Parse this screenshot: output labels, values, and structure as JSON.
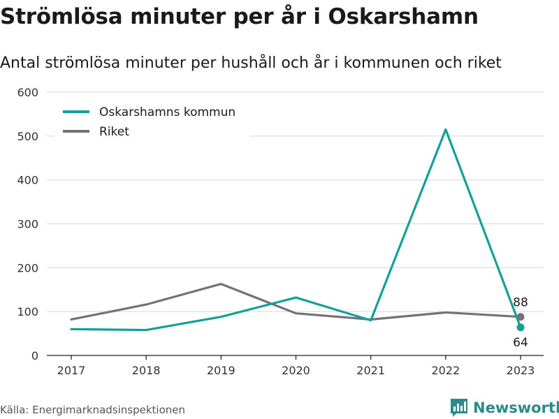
{
  "title": "Strömlösa minuter per år i Oskarshamn",
  "subtitle": "Antal strömlösa minuter per hushåll och år i kommunen och riket",
  "source": "Källa: Energimarknadsinspektionen",
  "brand": {
    "name": "Newsworthy",
    "icon": "bar-chart-logo-icon",
    "color": "#2b8a8a"
  },
  "chart_data": {
    "type": "line",
    "x": [
      "2017",
      "2018",
      "2019",
      "2020",
      "2021",
      "2022",
      "2023"
    ],
    "ylim": [
      0,
      600
    ],
    "yticks": [
      "0",
      "100",
      "200",
      "300",
      "400",
      "500",
      "600"
    ],
    "grid": true,
    "legend_position": "top-left",
    "series": [
      {
        "name": "Oskarshamns kommun",
        "color": "#12a19a",
        "values": [
          60,
          58,
          88,
          132,
          80,
          515,
          64
        ],
        "end_label": "64"
      },
      {
        "name": "Riket",
        "color": "#737278",
        "values": [
          82,
          116,
          163,
          96,
          82,
          98,
          88
        ],
        "end_label": "88"
      }
    ]
  }
}
